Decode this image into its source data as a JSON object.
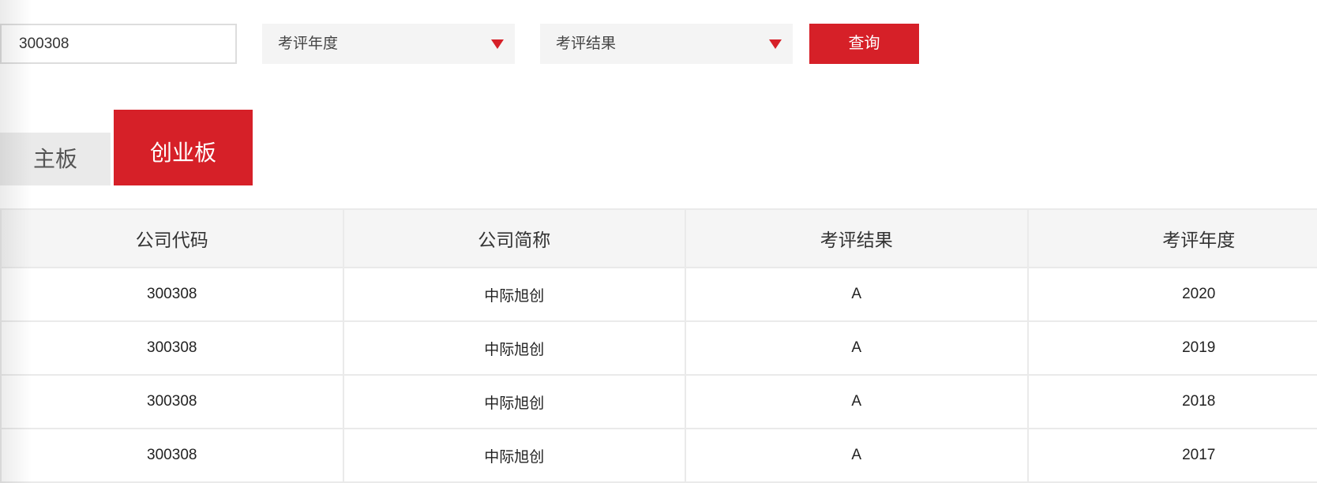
{
  "search": {
    "code_value": "300308",
    "year_select": "考评年度",
    "result_select": "考评结果",
    "query_button": "查询"
  },
  "tabs": [
    {
      "label": "主板",
      "active": false
    },
    {
      "label": "创业板",
      "active": true
    }
  ],
  "table": {
    "headers": [
      "公司代码",
      "公司简称",
      "考评结果",
      "考评年度"
    ],
    "rows": [
      [
        "300308",
        "中际旭创",
        "A",
        "2020"
      ],
      [
        "300308",
        "中际旭创",
        "A",
        "2019"
      ],
      [
        "300308",
        "中际旭创",
        "A",
        "2018"
      ],
      [
        "300308",
        "中际旭创",
        "A",
        "2017"
      ]
    ]
  },
  "colors": {
    "accent": "#d62028",
    "header_bg": "#f5f5f5"
  }
}
